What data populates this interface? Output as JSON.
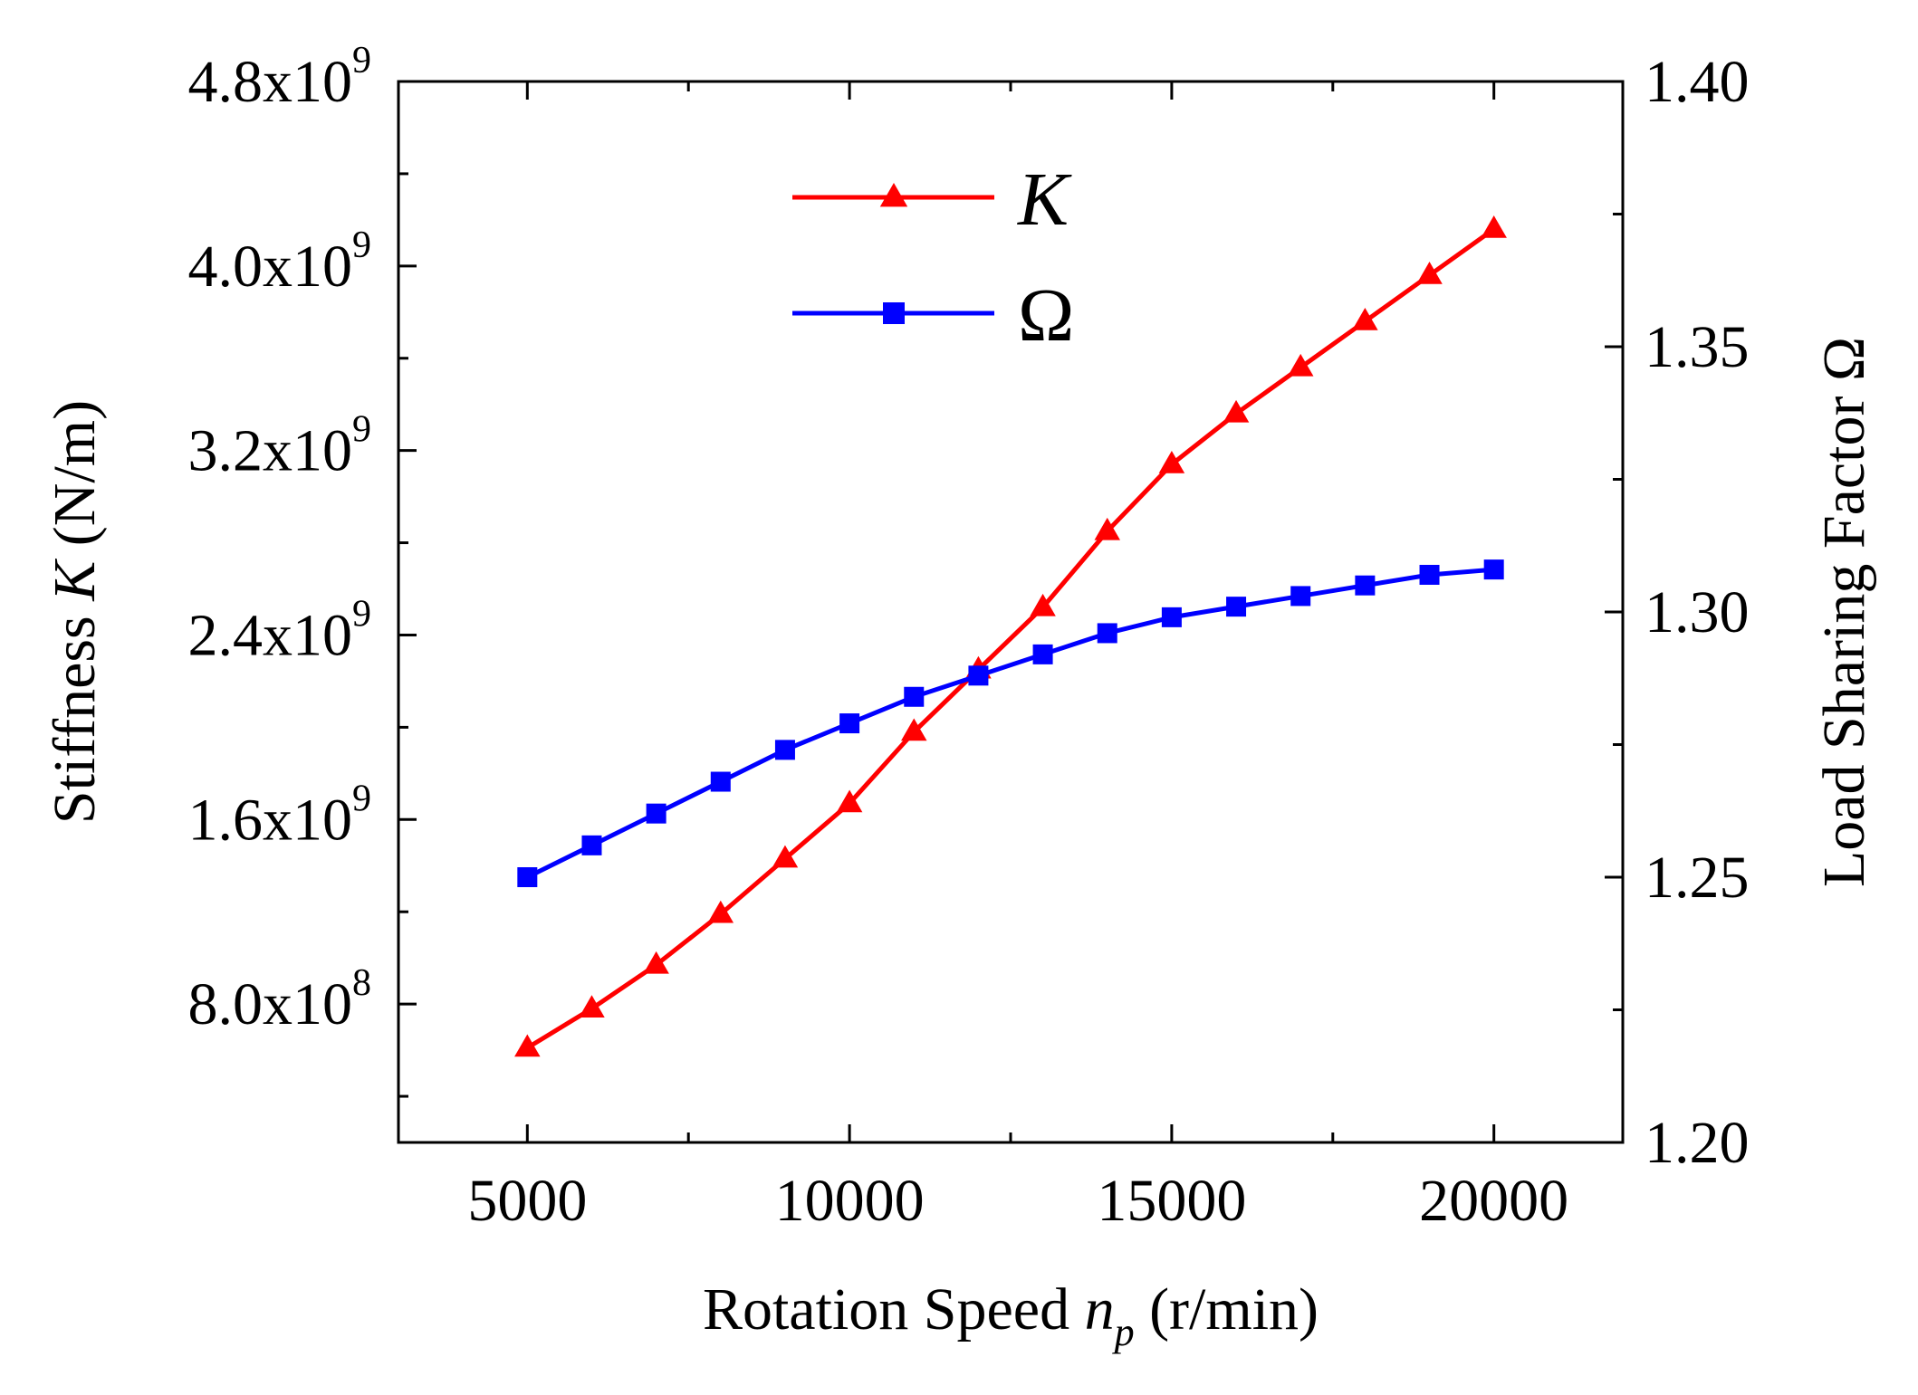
{
  "chart_data": {
    "type": "line",
    "x": [
      5000,
      6000,
      7000,
      8000,
      9000,
      10000,
      11000,
      12000,
      13000,
      14000,
      15000,
      16000,
      17000,
      18000,
      19000,
      20000
    ],
    "series": [
      {
        "name": "K",
        "axis": "left",
        "color": "#ff0000",
        "marker": "triangle",
        "values": [
          610000000.0,
          780000000.0,
          970000000.0,
          1190000000.0,
          1430000000.0,
          1670000000.0,
          1980000000.0,
          2250000000.0,
          2520000000.0,
          2850000000.0,
          3140000000.0,
          3360000000.0,
          3560000000.0,
          3760000000.0,
          3960000000.0,
          4160000000.0
        ]
      },
      {
        "name": "Ω",
        "axis": "right",
        "color": "#0000ff",
        "marker": "square",
        "values": [
          1.25,
          1.256,
          1.262,
          1.268,
          1.274,
          1.279,
          1.284,
          1.288,
          1.292,
          1.296,
          1.299,
          1.301,
          1.303,
          1.305,
          1.307,
          1.308
        ]
      }
    ],
    "xlim": [
      3000,
      22000
    ],
    "xticks": [
      5000,
      10000,
      15000,
      20000
    ],
    "xtick_labels": [
      "5000",
      "10000",
      "15000",
      "20000"
    ],
    "y_left_lim": [
      200000000.0,
      4800000000.0
    ],
    "y_left_ticks": [
      800000000.0,
      1600000000.0,
      2400000000.0,
      3200000000.0,
      4000000000.0,
      4800000000.0
    ],
    "y_left_tick_labels": [
      {
        "mantissa": "8.0x10",
        "exp": "8"
      },
      {
        "mantissa": "1.6x10",
        "exp": "9"
      },
      {
        "mantissa": "2.4x10",
        "exp": "9"
      },
      {
        "mantissa": "3.2x10",
        "exp": "9"
      },
      {
        "mantissa": "4.0x10",
        "exp": "9"
      },
      {
        "mantissa": "4.8x10",
        "exp": "9"
      }
    ],
    "y_right_lim": [
      1.2,
      1.4
    ],
    "y_right_ticks": [
      1.2,
      1.25,
      1.3,
      1.35,
      1.4
    ],
    "y_right_tick_labels": [
      "1.20",
      "1.25",
      "1.30",
      "1.35",
      "1.40"
    ],
    "xlabel": {
      "pre": "Rotation Speed ",
      "var": "n",
      "sub": "p",
      "post": " (r/min)"
    },
    "ylabel_left": {
      "pre": "Stiffness ",
      "var": "K",
      "post": " (N/m)"
    },
    "ylabel_right": "Load Sharing Factor Ω",
    "legend": [
      {
        "label": "K",
        "italic": true
      },
      {
        "label": "Ω",
        "italic": false
      }
    ],
    "legend_position": "top-center",
    "grid": false
  }
}
